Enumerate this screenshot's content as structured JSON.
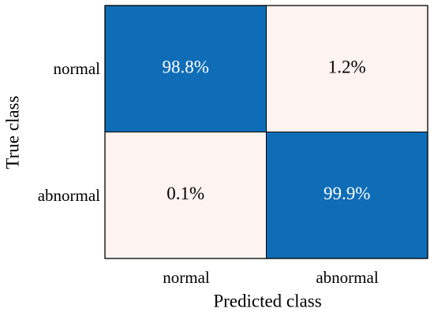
{
  "chart_data": {
    "type": "heatmap",
    "title": "",
    "xlabel": "Predicted class",
    "ylabel": "True class",
    "x_categories": [
      "normal",
      "abnormal"
    ],
    "y_categories": [
      "normal",
      "abnormal"
    ],
    "values": [
      [
        98.8,
        1.2
      ],
      [
        0.1,
        99.9
      ]
    ],
    "labels": [
      [
        "98.8%",
        "1.2%"
      ],
      [
        "0.1%",
        "99.9%"
      ]
    ],
    "unit": "%",
    "colors": {
      "high": "#0f6db7",
      "low": "#fdf3f0",
      "high_text": "#ffffff",
      "low_text": "#000000",
      "border": "#000000"
    }
  }
}
